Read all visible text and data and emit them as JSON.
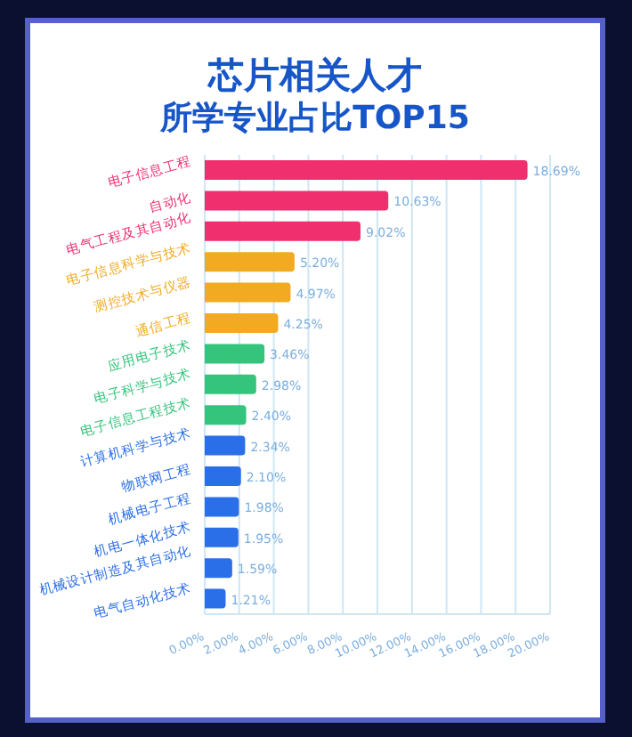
{
  "chart_data": {
    "type": "bar",
    "orientation": "horizontal",
    "title": "芯片相关人才",
    "subtitle": "所学专业占比TOP15",
    "categories": [
      "电子信息工程",
      "自动化",
      "电气工程及其自动化",
      "电子信息科学与技术",
      "测控技术与仪器",
      "通信工程",
      "应用电子技术",
      "电子科学与技术",
      "电子信息工程技术",
      "计算机科学与技术",
      "物联网工程",
      "机械电子工程",
      "机电一体化技术",
      "机械设计制造及其自动化",
      "电气自动化技术"
    ],
    "values": [
      18.69,
      10.63,
      9.02,
      5.2,
      4.97,
      4.25,
      3.46,
      2.98,
      2.4,
      2.34,
      2.1,
      1.98,
      1.95,
      1.59,
      1.21
    ],
    "value_labels": [
      "18.69%",
      "10.63%",
      "9.02%",
      "5.20%",
      "4.97%",
      "4.25%",
      "3.46%",
      "2.98%",
      "2.40%",
      "2.34%",
      "2.10%",
      "1.98%",
      "1.95%",
      "1.59%",
      "1.21%"
    ],
    "colors": [
      "#f0306e",
      "#f0306e",
      "#f0306e",
      "#f2aa22",
      "#f2aa22",
      "#f2aa22",
      "#34c47c",
      "#34c47c",
      "#34c47c",
      "#2b6fe8",
      "#2b6fe8",
      "#2b6fe8",
      "#2b6fe8",
      "#2b6fe8",
      "#2b6fe8"
    ],
    "xlim": [
      0,
      20
    ],
    "xticks": [
      {
        "value": 0,
        "label": "0.00%"
      },
      {
        "value": 2,
        "label": "2.00%"
      },
      {
        "value": 4,
        "label": "4.00%"
      },
      {
        "value": 6,
        "label": "6.00%"
      },
      {
        "value": 8,
        "label": "8.00%"
      },
      {
        "value": 10,
        "label": "10.00%"
      },
      {
        "value": 12,
        "label": "12.00%"
      },
      {
        "value": 14,
        "label": "14.00%"
      },
      {
        "value": 16,
        "label": "16.00%"
      },
      {
        "value": 18,
        "label": "18.00%"
      },
      {
        "value": 20,
        "label": "20.00%"
      }
    ],
    "grid": "x",
    "legend": false
  }
}
